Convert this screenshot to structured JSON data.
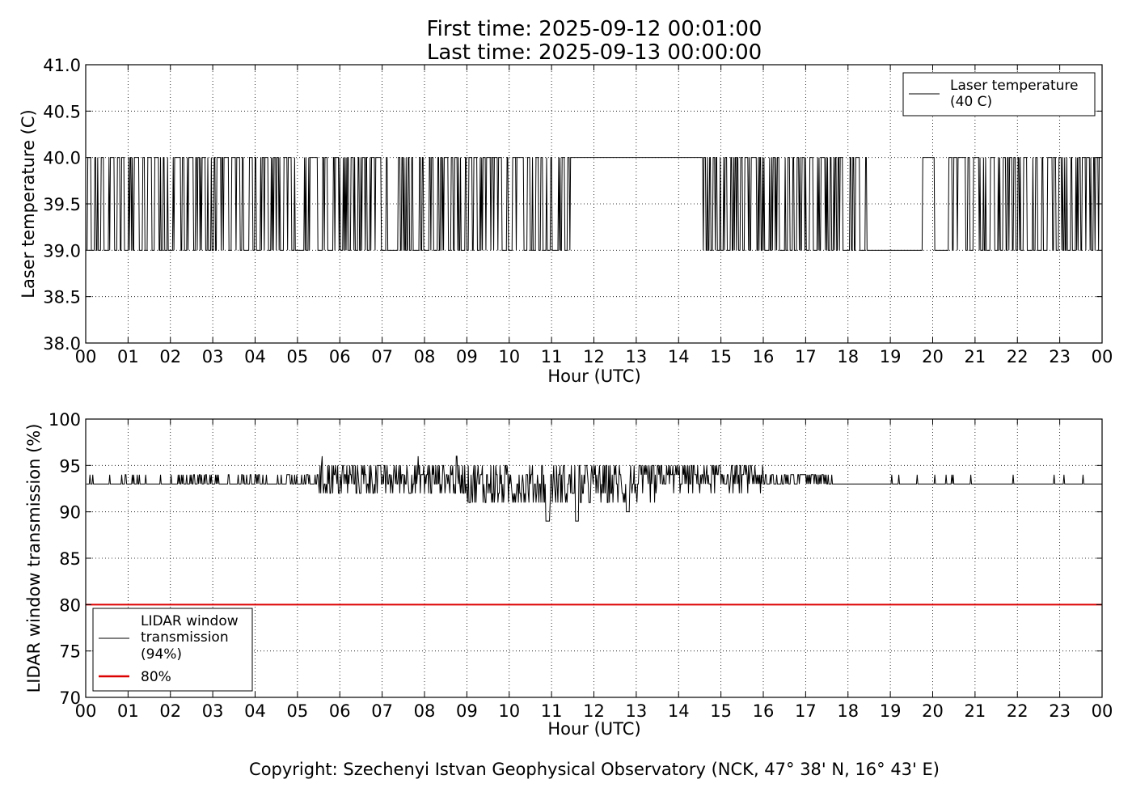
{
  "figure": {
    "title_line1": "First time: 2025-09-12 00:01:00",
    "title_line2": "Last time: 2025-09-13 00:00:00",
    "copyright": "Copyright: Szechenyi Istvan Geophysical Observatory (NCK, 47° 38' N, 16° 43' E)"
  },
  "chart_data": [
    {
      "type": "line",
      "title": "First time: 2025-09-12 00:01:00 / Last time: 2025-09-13 00:00:00",
      "xlabel": "Hour (UTC)",
      "ylabel": "Laser temperature (C)",
      "xlim": [
        0,
        24
      ],
      "ylim": [
        38.0,
        41.0
      ],
      "x_ticks": [
        "00",
        "01",
        "02",
        "03",
        "04",
        "05",
        "06",
        "07",
        "08",
        "09",
        "10",
        "11",
        "12",
        "13",
        "14",
        "15",
        "16",
        "17",
        "18",
        "19",
        "20",
        "21",
        "22",
        "23",
        "00"
      ],
      "y_ticks": [
        "38.0",
        "38.5",
        "39.0",
        "39.5",
        "40.0",
        "40.5",
        "41.0"
      ],
      "grid": true,
      "legend_position": "upper right",
      "legend": [
        {
          "label": "Laser temperature\n(40 C)",
          "color": "#000000"
        }
      ],
      "series": [
        {
          "name": "Laser temperature (40 C)",
          "color": "#000000",
          "sampling": "1 minute, 00:01 to 24:00 UTC",
          "levels": [
            39.0,
            40.0
          ],
          "segments": [
            {
              "x_range": [
                0.02,
                11.55
              ],
              "pattern": "rapid toggling between 39.0 and 40.0"
            },
            {
              "x_range": [
                11.55,
                14.45
              ],
              "value": 40.0
            },
            {
              "x_range": [
                14.45,
                18.45
              ],
              "pattern": "rapid toggling between 39.0 and 40.0"
            },
            {
              "x_range": [
                18.45,
                19.75
              ],
              "value": 39.0
            },
            {
              "x_range": [
                19.75,
                20.5
              ],
              "pattern": "sparse toggling between 39.0 and 40.0"
            },
            {
              "x_range": [
                20.5,
                24.0
              ],
              "pattern": "rapid toggling between 39.0 and 40.0"
            }
          ]
        }
      ]
    },
    {
      "type": "line",
      "xlabel": "Hour (UTC)",
      "ylabel": "LIDAR window transmission (%)",
      "xlim": [
        0,
        24
      ],
      "ylim": [
        70,
        100
      ],
      "x_ticks": [
        "00",
        "01",
        "02",
        "03",
        "04",
        "05",
        "06",
        "07",
        "08",
        "09",
        "10",
        "11",
        "12",
        "13",
        "14",
        "15",
        "16",
        "17",
        "18",
        "19",
        "20",
        "21",
        "22",
        "23",
        "00"
      ],
      "y_ticks": [
        "70",
        "75",
        "80",
        "85",
        "90",
        "95",
        "100"
      ],
      "grid": true,
      "legend_position": "lower left",
      "legend": [
        {
          "label": "LIDAR window\ntransmission\n(94%)",
          "color": "#000000"
        },
        {
          "label": "80%",
          "color": "#dd0000"
        }
      ],
      "series": [
        {
          "name": "LIDAR window transmission (94%)",
          "color": "#000000",
          "sampling": "1 minute, 00:01 to 24:00 UTC",
          "baseline": 93,
          "segments": [
            {
              "x_range": [
                0.0,
                2.0
              ],
              "pattern": "mostly 93, rare spikes to 94"
            },
            {
              "x_range": [
                2.0,
                5.5
              ],
              "pattern": "93 with frequent spikes to 94"
            },
            {
              "x_range": [
                5.5,
                9.0
              ],
              "pattern": "fluctuating 91 to 95, occasional 96"
            },
            {
              "x_range": [
                9.0,
                13.5
              ],
              "pattern": "fluctuating 89 to 96, dips to 89 near 10.9 and 11.6, 90 near 12.8"
            },
            {
              "x_range": [
                13.5,
                16.0
              ],
              "pattern": "fluctuating 92 to 95"
            },
            {
              "x_range": [
                16.0,
                17.5
              ],
              "pattern": "93 to 94 toggling"
            },
            {
              "x_range": [
                17.5,
                24.0
              ],
              "pattern": "mostly 93, isolated spikes to 94"
            }
          ]
        },
        {
          "name": "80%",
          "color": "#dd0000",
          "x": [
            0,
            24
          ],
          "y": [
            80,
            80
          ]
        }
      ]
    }
  ]
}
